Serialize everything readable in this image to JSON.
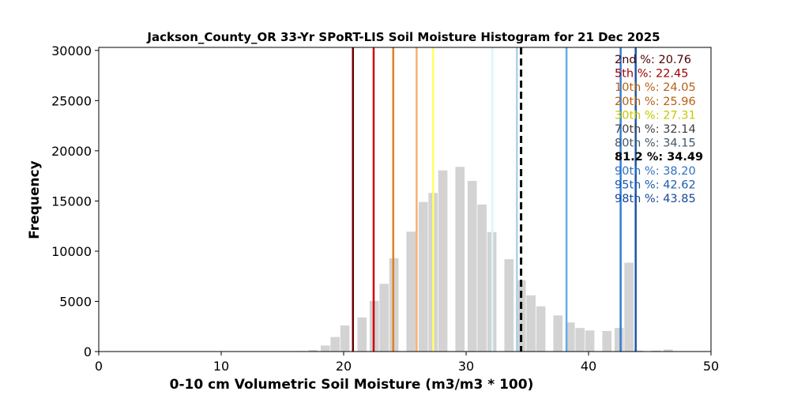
{
  "chart_data": {
    "type": "bar",
    "title": "Jackson_County_OR 33-Yr SPoRT-LIS Soil Moisture Histogram for 21 Dec 2025",
    "xlabel": "0-10 cm Volumetric Soil Moisture (m3/m3 * 100)",
    "ylabel": "Frequency",
    "xlim": [
      0,
      50
    ],
    "ylim": [
      0,
      30300
    ],
    "xticks": [
      "0",
      "10",
      "20",
      "30",
      "40",
      "50"
    ],
    "yticks": [
      "0",
      "5000",
      "10000",
      "15000",
      "20000",
      "25000",
      "30000"
    ],
    "bar_color": "#d3d3d3",
    "bars": [
      {
        "x": 16.5,
        "value": 50
      },
      {
        "x": 17.5,
        "value": 150
      },
      {
        "x": 18.5,
        "value": 600
      },
      {
        "x": 19.3,
        "value": 1450
      },
      {
        "x": 20.1,
        "value": 2600
      },
      {
        "x": 21.5,
        "value": 3400
      },
      {
        "x": 22.5,
        "value": 5050
      },
      {
        "x": 23.3,
        "value": 6750
      },
      {
        "x": 24.1,
        "value": 9300
      },
      {
        "x": 25.5,
        "value": 11950
      },
      {
        "x": 26.5,
        "value": 14900
      },
      {
        "x": 27.3,
        "value": 15800
      },
      {
        "x": 28.1,
        "value": 18050
      },
      {
        "x": 29.5,
        "value": 18400
      },
      {
        "x": 30.5,
        "value": 17000
      },
      {
        "x": 31.3,
        "value": 14650
      },
      {
        "x": 32.1,
        "value": 11900
      },
      {
        "x": 33.5,
        "value": 9200
      },
      {
        "x": 34.5,
        "value": 7100
      },
      {
        "x": 35.3,
        "value": 5600
      },
      {
        "x": 36.1,
        "value": 4500
      },
      {
        "x": 37.5,
        "value": 3600
      },
      {
        "x": 38.5,
        "value": 2900
      },
      {
        "x": 39.3,
        "value": 2350
      },
      {
        "x": 40.1,
        "value": 2100
      },
      {
        "x": 41.5,
        "value": 2050
      },
      {
        "x": 42.5,
        "value": 2350
      },
      {
        "x": 43.3,
        "value": 8850
      },
      {
        "x": 44.1,
        "value": 100
      },
      {
        "x": 45.5,
        "value": 100
      },
      {
        "x": 46.5,
        "value": 200
      }
    ],
    "percentile_lines": [
      {
        "label": "2nd %: 20.76",
        "value": 20.76,
        "color": "#6b0000",
        "style": "solid"
      },
      {
        "label": "5th %: 22.45",
        "value": 22.45,
        "color": "#d40000",
        "style": "solid"
      },
      {
        "label": "10th %: 24.05",
        "value": 24.05,
        "color": "#e08020",
        "style": "solid"
      },
      {
        "label": "20th %: 25.96",
        "value": 25.96,
        "color": "#f5b070",
        "style": "solid"
      },
      {
        "label": "30th %: 27.31",
        "value": 27.31,
        "color": "#ffff66",
        "style": "solid"
      },
      {
        "label": "70th %: 32.14",
        "value": 32.14,
        "color": "#d6f8ff",
        "style": "solid"
      },
      {
        "label": "80th %: 34.15",
        "value": 34.15,
        "color": "#a8d4ea",
        "style": "solid"
      },
      {
        "label": "81.2 %: 34.49",
        "value": 34.49,
        "color": "#000000",
        "style": "dashed"
      },
      {
        "label": "90th %: 38.20",
        "value": 38.2,
        "color": "#66aaea",
        "style": "solid"
      },
      {
        "label": "95th %: 42.62",
        "value": 42.62,
        "color": "#2f7fd8",
        "style": "solid"
      },
      {
        "label": "98th %: 43.85",
        "value": 43.85,
        "color": "#1a55a8",
        "style": "solid"
      }
    ],
    "legend_text_colors": [
      "#4a0000",
      "#a00000",
      "#b86010",
      "#b86010",
      "#c8c800",
      "#404040",
      "#405868",
      "#000000",
      "#3070c0",
      "#1c5cb0",
      "#14489a"
    ],
    "legend_placement": "top-right",
    "grid": false
  }
}
